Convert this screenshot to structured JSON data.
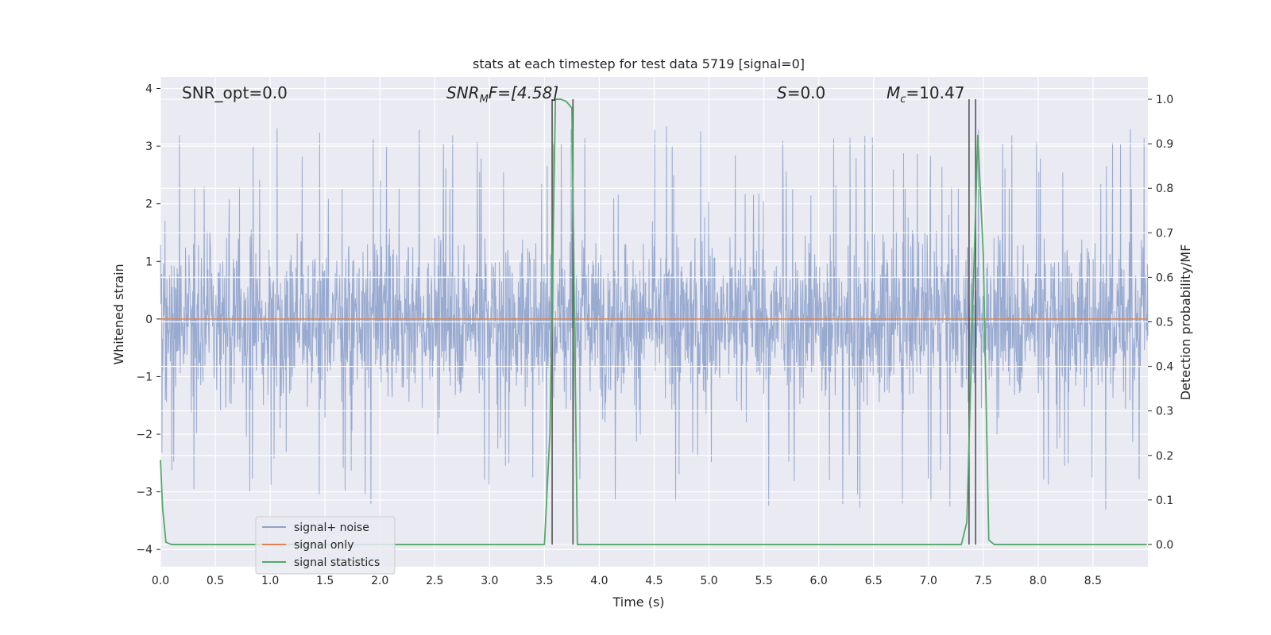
{
  "chart_data": {
    "type": "line",
    "title": "stats at each timestep for test data 5719 [signal=0]",
    "xlabel": "Time (s)",
    "ylabel_left": "Whitened strain",
    "ylabel_right": "Detection probability/MF",
    "xlim": [
      0.0,
      9.0
    ],
    "ylim_left": [
      -4.3,
      4.2
    ],
    "ylim_right": [
      -0.05,
      1.05
    ],
    "grid": true,
    "legend_position": "lower-left",
    "x_ticks": [
      "0.0",
      "0.5",
      "1.0",
      "1.5",
      "2.0",
      "2.5",
      "3.0",
      "3.5",
      "4.0",
      "4.5",
      "5.0",
      "5.5",
      "6.0",
      "6.5",
      "7.0",
      "7.5",
      "8.0",
      "8.5"
    ],
    "y_ticks_left": [
      "4",
      "3",
      "2",
      "1",
      "0",
      "−1",
      "−2",
      "−3",
      "−4"
    ],
    "y_ticks_right": [
      "1.0",
      "0.9",
      "0.8",
      "0.7",
      "0.6",
      "0.5",
      "0.4",
      "0.3",
      "0.2",
      "0.1",
      "0.0"
    ],
    "annotations": {
      "snr_opt": "SNR_opt=0.0",
      "snr_mf_base": "SNR",
      "snr_mf_sub": "M",
      "snr_mf_rest": "F=[4.58]",
      "s_base": "S",
      "s_rest": "=0.0",
      "mc_base": "M",
      "mc_sub": "c",
      "mc_rest": "=10.47"
    },
    "series": [
      {
        "name": "signal+ noise",
        "color": "#8fa3cc",
        "noise_band": {
          "typical_min": -2.0,
          "typical_max": 2.0,
          "extreme_min": -3.95,
          "extreme_max": 3.35
        }
      },
      {
        "name": "signal only",
        "color": "#dd8452",
        "x": [
          0.0,
          9.0
        ],
        "y": [
          0.0,
          0.0
        ]
      },
      {
        "name": "signal statistics",
        "color": "#55a868",
        "x": [
          0.0,
          0.02,
          0.05,
          0.1,
          0.15,
          3.5,
          3.55,
          3.6,
          3.65,
          3.7,
          3.75,
          3.8,
          3.85,
          7.3,
          7.35,
          7.4,
          7.45,
          7.5,
          7.55,
          7.6,
          8.99
        ],
        "y": [
          0.19,
          0.08,
          0.005,
          0.0,
          0.0,
          0.0,
          0.25,
          1.0,
          1.0,
          0.995,
          0.98,
          0.0,
          0.0,
          0.0,
          0.05,
          0.5,
          0.92,
          0.65,
          0.01,
          0.0,
          0.0
        ]
      }
    ],
    "vertical_markers_x": [
      3.57,
      3.76,
      7.37,
      7.43
    ]
  },
  "colors": {
    "axes_bg": "#eaeaf2",
    "grid": "#ffffff",
    "marker": "#555555"
  }
}
